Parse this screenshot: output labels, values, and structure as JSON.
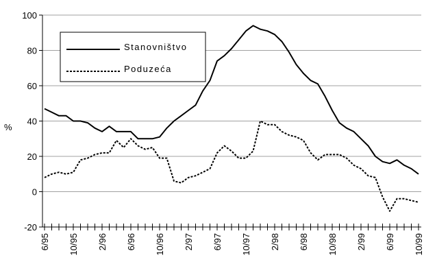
{
  "chart_data": {
    "type": "line",
    "ylabel": "%",
    "categories": [
      "6/95",
      null,
      null,
      null,
      "10/95",
      null,
      null,
      null,
      "2/96",
      null,
      null,
      null,
      "6/96",
      null,
      null,
      null,
      "10/96",
      null,
      null,
      null,
      "2/97",
      null,
      null,
      null,
      "6/97",
      null,
      null,
      null,
      "10/97",
      null,
      null,
      null,
      "2/98",
      null,
      null,
      null,
      "6/98",
      null,
      null,
      null,
      "10/98",
      null,
      null,
      null,
      "2/99",
      null,
      null,
      null,
      "6/99",
      null,
      null,
      null,
      "10/99"
    ],
    "series": [
      {
        "name": "Stanovništvo",
        "color": "#000000",
        "dash": false,
        "values": [
          47,
          45,
          43,
          43,
          40,
          40,
          39,
          36,
          34,
          37,
          34,
          34,
          34,
          30,
          30,
          30,
          31,
          36,
          40,
          43,
          46,
          49,
          57,
          63,
          74,
          77,
          81,
          86,
          91,
          94,
          92,
          91,
          89,
          85,
          79,
          72,
          67,
          63,
          61,
          54,
          46,
          39,
          36,
          34,
          30,
          26,
          20,
          17,
          16,
          18,
          15,
          13,
          10
        ]
      },
      {
        "name": "Poduzeća",
        "color": "#000000",
        "dash": true,
        "values": [
          8,
          10,
          11,
          10,
          11,
          18,
          19,
          21,
          22,
          22,
          29,
          25,
          30,
          26,
          24,
          25,
          19,
          19,
          6,
          5,
          8,
          9,
          11,
          13,
          22,
          26,
          23,
          19,
          19,
          23,
          40,
          38,
          38,
          34,
          32,
          31,
          29,
          22,
          18,
          21,
          21,
          21,
          19,
          15,
          13,
          9,
          8,
          -3,
          -11,
          -4,
          -4,
          -5,
          -6
        ]
      }
    ],
    "ylim": [
      -20,
      100
    ],
    "yticks": [
      -20,
      0,
      20,
      40,
      60,
      80,
      100
    ],
    "grid": true
  }
}
